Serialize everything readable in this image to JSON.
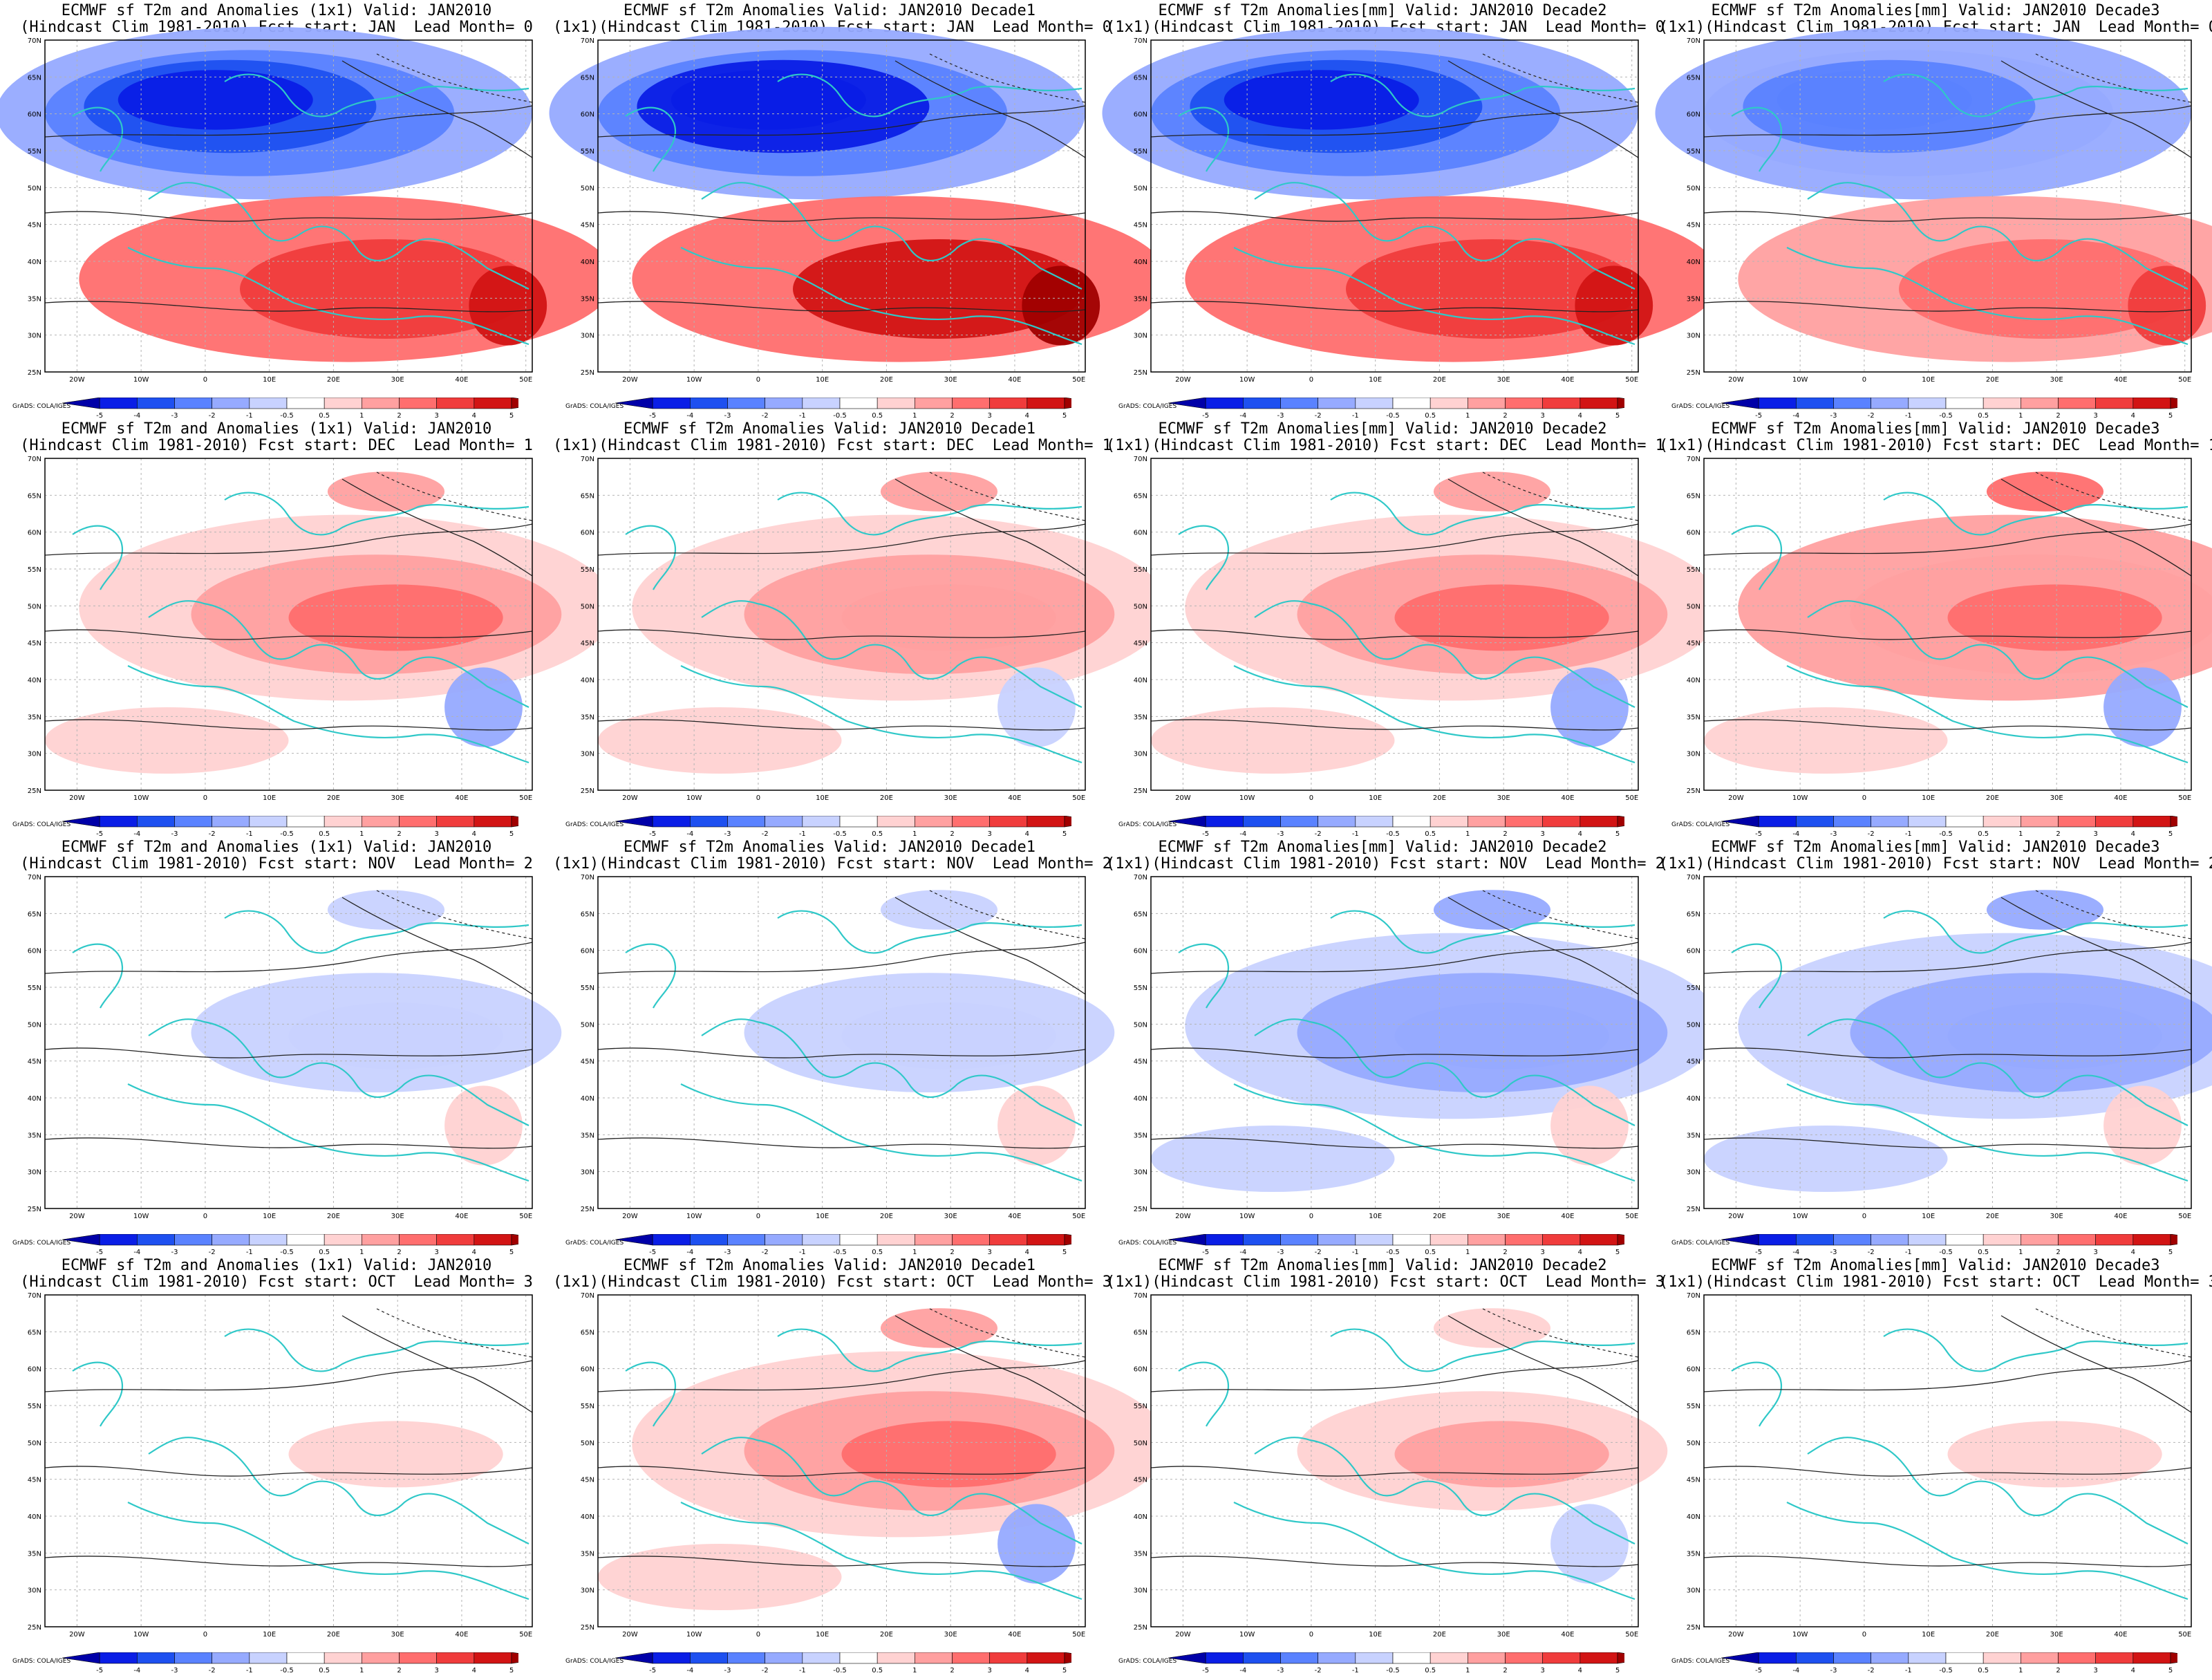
{
  "legend": {
    "levels": [
      "-5",
      "-4",
      "-3",
      "-2",
      "-1",
      "-0.5",
      "0.5",
      "1",
      "2",
      "3",
      "4",
      "5"
    ],
    "colors": [
      "#0000a8",
      "#0a1ee6",
      "#1e50f0",
      "#5a82ff",
      "#96aaff",
      "#c8d2ff",
      "#ffffff",
      "#ffd2d2",
      "#ffa0a0",
      "#ff6e6e",
      "#f03c3c",
      "#d21414",
      "#a00000"
    ]
  },
  "credit": "GrADS: COLA/IGES",
  "axes": {
    "lon_labels": [
      "20W",
      "10W",
      "0",
      "10E",
      "20E",
      "30E",
      "40E",
      "50E"
    ],
    "lat_labels": [
      "70N",
      "65N",
      "60N",
      "55N",
      "50N",
      "45N",
      "40N",
      "35N",
      "30N",
      "25N"
    ]
  },
  "panels": [
    {
      "line1": "ECMWF sf T2m and Anomalies (1x1) Valid: JAN2010",
      "line2": "(Hindcast Clim 1981-2010) Fcst start: JAN  Lead Month= 0",
      "anomaly": -4.5
    },
    {
      "line1": "ECMWF sf T2m Anomalies Valid: JAN2010 Decade1",
      "line2": "(1x1)(Hindcast Clim 1981-2010) Fcst start: JAN  Lead Month= 0",
      "anomaly": -5
    },
    {
      "line1": "ECMWF sf T2m Anomalies[mm] Valid: JAN2010 Decade2",
      "line2": "(1x1)(Hindcast Clim 1981-2010) Fcst start: JAN  Lead Month= 0",
      "anomaly": -4.5
    },
    {
      "line1": "ECMWF sf T2m Anomalies[mm] Valid: JAN2010 Decade3",
      "line2": "(1x1)(Hindcast Clim 1981-2010) Fcst start: JAN  Lead Month= 0",
      "anomaly": -3
    },
    {
      "line1": "ECMWF sf T2m and Anomalies (1x1) Valid: JAN2010",
      "line2": "(Hindcast Clim 1981-2010) Fcst start: DEC  Lead Month= 1",
      "anomaly": 2
    },
    {
      "line1": "ECMWF sf T2m Anomalies Valid: JAN2010 Decade1",
      "line2": "(1x1)(Hindcast Clim 1981-2010) Fcst start: DEC  Lead Month= 1",
      "anomaly": 1.5
    },
    {
      "line1": "ECMWF sf T2m Anomalies[mm] Valid: JAN2010 Decade2",
      "line2": "(1x1)(Hindcast Clim 1981-2010) Fcst start: DEC  Lead Month= 1",
      "anomaly": 2
    },
    {
      "line1": "ECMWF sf T2m Anomalies[mm] Valid: JAN2010 Decade3",
      "line2": "(1x1)(Hindcast Clim 1981-2010) Fcst start: DEC  Lead Month= 1",
      "anomaly": 2.5
    },
    {
      "line1": "ECMWF sf T2m and Anomalies (1x1) Valid: JAN2010",
      "line2": "(Hindcast Clim 1981-2010) Fcst start: NOV  Lead Month= 2",
      "anomaly": -1
    },
    {
      "line1": "ECMWF sf T2m Anomalies Valid: JAN2010 Decade1",
      "line2": "(1x1)(Hindcast Clim 1981-2010) Fcst start: NOV  Lead Month= 2",
      "anomaly": -1
    },
    {
      "line1": "ECMWF sf T2m Anomalies[mm] Valid: JAN2010 Decade2",
      "line2": "(1x1)(Hindcast Clim 1981-2010) Fcst start: NOV  Lead Month= 2",
      "anomaly": -1.5
    },
    {
      "line1": "ECMWF sf T2m Anomalies[mm] Valid: JAN2010 Decade3",
      "line2": "(1x1)(Hindcast Clim 1981-2010) Fcst start: NOV  Lead Month= 2",
      "anomaly": -1.5
    },
    {
      "line1": "ECMWF sf T2m and Anomalies (1x1) Valid: JAN2010",
      "line2": "(Hindcast Clim 1981-2010) Fcst start: OCT  Lead Month= 3",
      "anomaly": 0.5
    },
    {
      "line1": "ECMWF sf T2m Anomalies Valid: JAN2010 Decade1",
      "line2": "(1x1)(Hindcast Clim 1981-2010) Fcst start: OCT  Lead Month= 3",
      "anomaly": 2
    },
    {
      "line1": "ECMWF sf T2m Anomalies[mm] Valid: JAN2010 Decade2",
      "line2": "(1x1)(Hindcast Clim 1981-2010) Fcst start: OCT  Lead Month= 3",
      "anomaly": 1
    },
    {
      "line1": "ECMWF sf T2m Anomalies[mm] Valid: JAN2010 Decade3",
      "line2": "(1x1)(Hindcast Clim 1981-2010) Fcst start: OCT  Lead Month= 3",
      "anomaly": 0.5
    }
  ]
}
